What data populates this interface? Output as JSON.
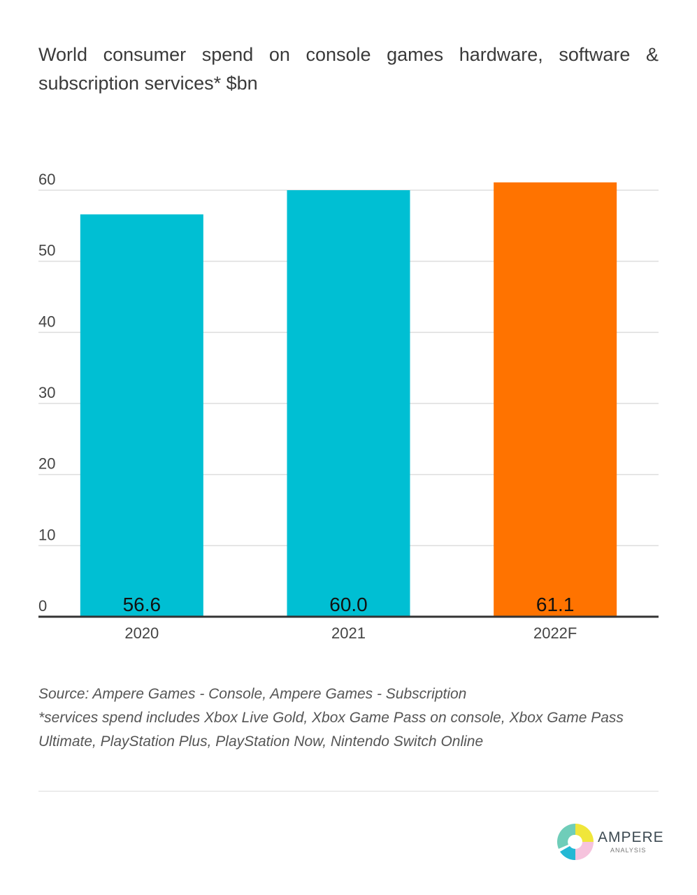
{
  "chart_data": {
    "type": "bar",
    "title": "World consumer spend on console games hardware, software & subscription services* $bn",
    "categories": [
      "2020",
      "2021",
      "2022F"
    ],
    "values": [
      56.6,
      60.0,
      61.1
    ],
    "value_labels": [
      "56.6",
      "60.0",
      "61.1"
    ],
    "colors": [
      "#00bfd3",
      "#00bfd3",
      "#ff7300"
    ],
    "ylim": [
      0,
      60
    ],
    "yticks": [
      0,
      10,
      20,
      30,
      40,
      50,
      60
    ],
    "grid": true,
    "xlabel": "",
    "ylabel": ""
  },
  "notes": {
    "source": "Source: Ampere Games - Console, Ampere Games - Subscription",
    "footnote": "*services spend includes Xbox Live Gold, Xbox Game Pass on console, Xbox Game Pass Ultimate, PlayStation Plus, PlayStation Now, Nintendo Switch Online"
  },
  "logo": {
    "name": "AMPERE",
    "sub": "ANALYSIS"
  }
}
